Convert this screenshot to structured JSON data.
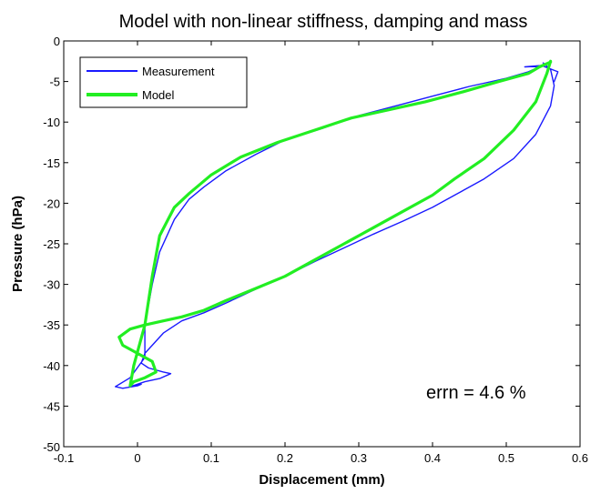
{
  "chart_data": {
    "type": "line",
    "title": "Model with non-linear stiffness, damping and mass",
    "xlabel": "Displacement (mm)",
    "ylabel": "Pressure (hPa)",
    "xlim": [
      -0.1,
      0.6
    ],
    "ylim": [
      -50,
      0
    ],
    "x_ticks": [
      "-0.1",
      "0",
      "0.1",
      "0.2",
      "0.3",
      "0.4",
      "0.5",
      "0.6"
    ],
    "y_ticks": [
      "0",
      "-5",
      "-10",
      "-15",
      "-20",
      "-25",
      "-30",
      "-35",
      "-40",
      "-45",
      "-50"
    ],
    "grid": false,
    "legend_position": "top-left",
    "annotation": "errn = 4.6 %",
    "colors": {
      "measurement": "#1a1aff",
      "model": "#22ee22"
    },
    "series": [
      {
        "name": "Measurement",
        "x": [
          0.55,
          0.56,
          0.565,
          0.56,
          0.54,
          0.51,
          0.47,
          0.43,
          0.4,
          0.36,
          0.32,
          0.28,
          0.24,
          0.2,
          0.16,
          0.12,
          0.09,
          0.06,
          0.035,
          0.02,
          0.01,
          0.005,
          0.015,
          0.035,
          0.045,
          0.03,
          0.01,
          0.0,
          -0.01,
          0.005,
          0.0,
          -0.02,
          -0.03,
          -0.01,
          0.01,
          0.01,
          0.02,
          0.03,
          0.05,
          0.07,
          0.09,
          0.12,
          0.16,
          0.2,
          0.25,
          0.3,
          0.35,
          0.4,
          0.45,
          0.5,
          0.53,
          0.55,
          0.525,
          0.55,
          0.57,
          0.565
        ],
        "y": [
          -2.7,
          -3.5,
          -5.5,
          -8.0,
          -11.5,
          -14.5,
          -17.0,
          -19.0,
          -20.5,
          -22.2,
          -23.8,
          -25.5,
          -27.2,
          -29.0,
          -30.6,
          -32.3,
          -33.5,
          -34.5,
          -36.0,
          -37.5,
          -38.5,
          -39.7,
          -40.3,
          -40.8,
          -41.0,
          -41.6,
          -42.0,
          -42.3,
          -42.6,
          -42.3,
          -42.5,
          -42.8,
          -42.6,
          -41.5,
          -39.0,
          -35.0,
          -30.0,
          -26.0,
          -22.0,
          -19.5,
          -18.0,
          -16.0,
          -14.0,
          -12.2,
          -10.8,
          -9.2,
          -8.0,
          -6.8,
          -5.6,
          -4.6,
          -3.8,
          -3.0,
          -3.2,
          -3.1,
          -3.8,
          -5.0
        ]
      },
      {
        "name": "Model",
        "x": [
          0.56,
          0.555,
          0.54,
          0.51,
          0.47,
          0.43,
          0.4,
          0.36,
          0.32,
          0.28,
          0.24,
          0.2,
          0.16,
          0.12,
          0.09,
          0.06,
          0.035,
          0.01,
          -0.01,
          -0.025,
          -0.02,
          0.0,
          0.02,
          0.025,
          0.01,
          -0.005,
          -0.01,
          -0.005,
          0.01,
          0.02,
          0.03,
          0.05,
          0.07,
          0.1,
          0.14,
          0.19,
          0.24,
          0.29,
          0.34,
          0.39,
          0.44,
          0.49,
          0.53,
          0.545,
          0.56
        ],
        "y": [
          -2.5,
          -4.0,
          -7.5,
          -11.0,
          -14.5,
          -17.0,
          -19.0,
          -21.0,
          -23.0,
          -25.0,
          -27.0,
          -29.0,
          -30.5,
          -32.0,
          -33.2,
          -34.0,
          -34.5,
          -35.0,
          -35.5,
          -36.5,
          -37.5,
          -38.5,
          -39.5,
          -40.8,
          -41.5,
          -42.0,
          -42.5,
          -40.0,
          -35.0,
          -29.0,
          -24.0,
          -20.5,
          -18.8,
          -16.5,
          -14.3,
          -12.5,
          -11.0,
          -9.5,
          -8.5,
          -7.5,
          -6.3,
          -5.0,
          -4.0,
          -3.2,
          -2.6
        ]
      }
    ]
  }
}
